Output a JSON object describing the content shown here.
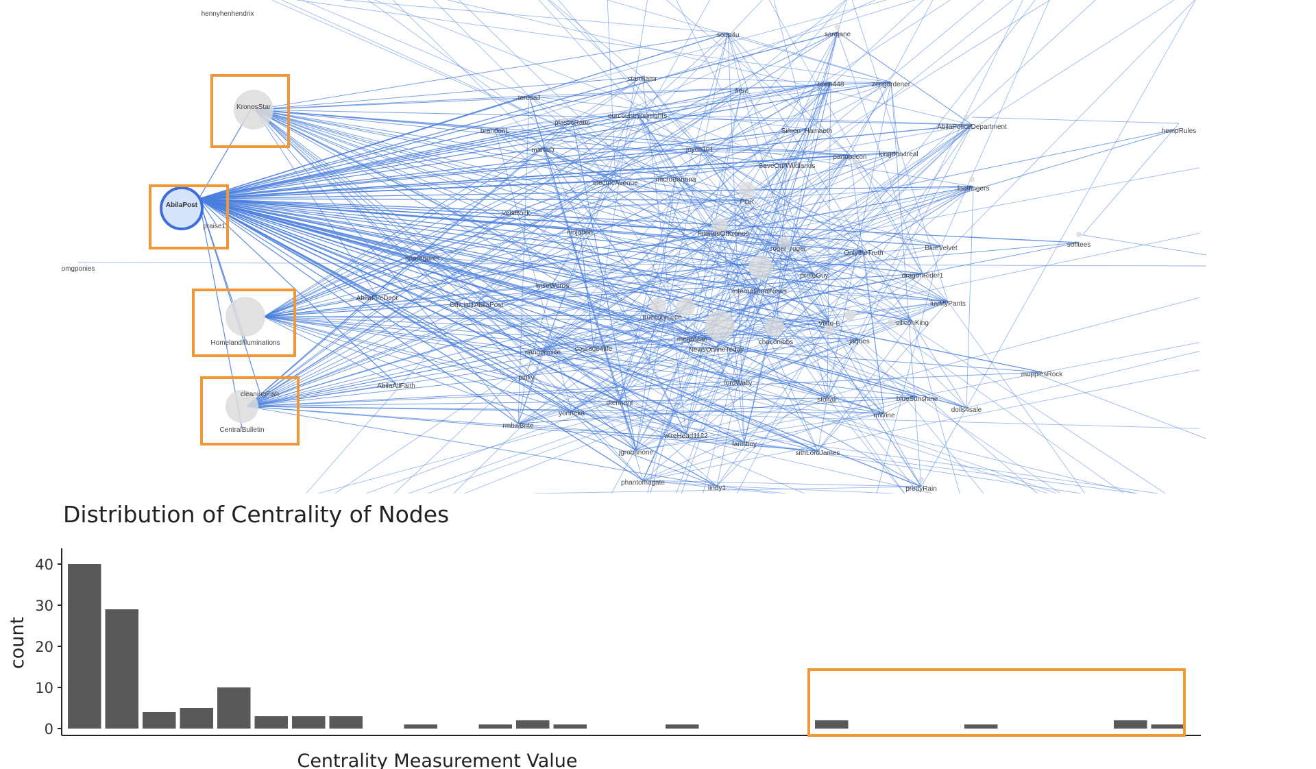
{
  "network": {
    "hub": "AbilaPost",
    "highlighted": [
      "KronosStar",
      "AbilaPost",
      "HomelandIlluminations",
      "CentralBulletin"
    ],
    "labels": [
      "hennyhenhendrix",
      "soup4u",
      "sarajane",
      "stamljamr",
      "brain448",
      "zengardener",
      "fient",
      "teresaJ",
      "ourcountryourrights",
      "KronosStar",
      "plasticRatts",
      "brandonL",
      "Simon_Hamaeth",
      "AbilaPoliceDepartment",
      "hempRules",
      "joyce101",
      "martaO",
      "panopticon",
      "kingdon4real",
      "SaveOurWildlands",
      "electricAvenue",
      "microBanana",
      "footfingers",
      "POK",
      "AbilaPost",
      "praise11",
      "velsRock",
      "ninjabob",
      "FriendsOfKronos",
      "roger_roger",
      "OnlytheTruth",
      "BlueVelvet",
      "sofitees",
      "omgponies",
      "anaregents",
      "protoGuy",
      "dragonRider1",
      "InternationalNews",
      "wiseWords",
      "AbilaFireDept",
      "Official1AbilaPost",
      "luvMyPants",
      "trucconrucce",
      "siliconKing",
      "Vikto-E",
      "megaMan",
      "HomelandIlluminations",
      "choconibbs",
      "jaques",
      "dangermice",
      "courage4life",
      "NewsOnlineToday",
      "muppiesRock",
      "pinky",
      "lordWally",
      "cleaningFish",
      "AbilaAllFaith",
      "stolfair",
      "blueSunshine",
      "dtennent",
      "mWine",
      "dolls4sale",
      "yonneka",
      "rmbwBrite",
      "CentralBulletin",
      "wireHead1122",
      "farmboy",
      "jgrobanone",
      "sithLordJames",
      "phantomagate",
      "lindy1",
      "prettyRain"
    ],
    "edge_color": "#4a7fde"
  },
  "chart_data": {
    "type": "bar",
    "title": "Distribution of Centrality of Nodes",
    "xlabel": "Centrality Measurement Value",
    "ylabel": "count",
    "ylim": [
      0,
      42
    ],
    "yticks": [
      0,
      10,
      20,
      30,
      40
    ],
    "bin_count": 30,
    "values": [
      40,
      29,
      4,
      5,
      10,
      3,
      3,
      3,
      0,
      1,
      0,
      1,
      2,
      1,
      0,
      0,
      1,
      0,
      0,
      0,
      2,
      0,
      0,
      0,
      1,
      0,
      0,
      0,
      2,
      1
    ],
    "bar_color": "#595959",
    "highlight_color": "#f0973a",
    "highlight_bins": [
      20,
      29
    ]
  }
}
